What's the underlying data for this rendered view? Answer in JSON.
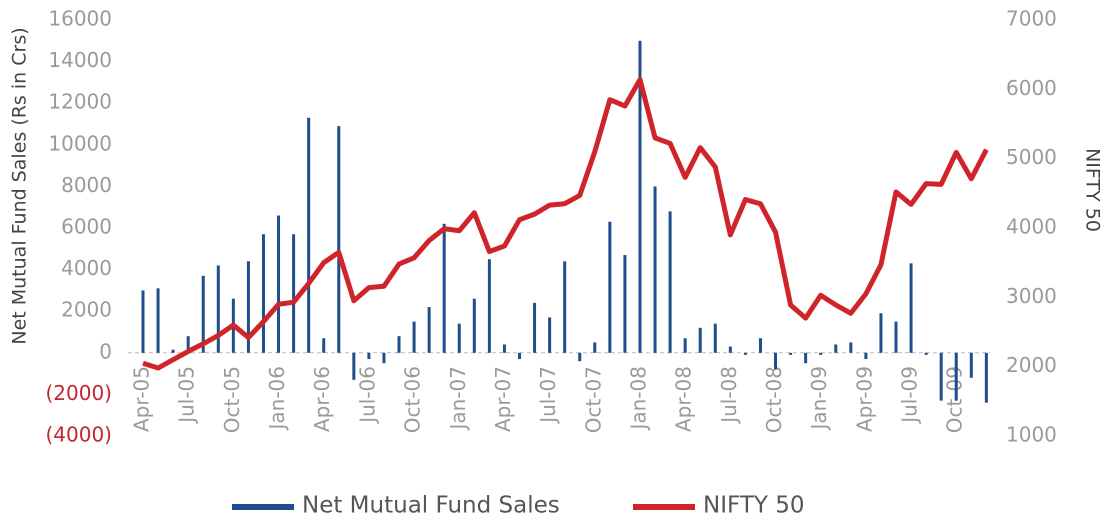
{
  "chart_data": {
    "type": "bar",
    "y_label": "Net Mutual Fund Sales (Rs in Crs)",
    "y2_label": "NIFTY 50",
    "categories": [
      "Apr-05",
      null,
      null,
      "Jul-05",
      null,
      null,
      "Oct-05",
      null,
      null,
      "Jan-06",
      null,
      null,
      "Apr-06",
      null,
      null,
      "Jul-06",
      null,
      null,
      "Oct-06",
      null,
      null,
      "Jan-07",
      null,
      null,
      "Apr-07",
      null,
      null,
      "Jul-07",
      null,
      null,
      "Oct-07",
      null,
      null,
      "Jan-08",
      null,
      null,
      "Apr-08",
      null,
      null,
      "Jul-08",
      null,
      null,
      "Oct-08",
      null,
      null,
      "Jan-09",
      null,
      null,
      "Apr-09",
      null,
      null,
      "Jul-09",
      null,
      null,
      "Oct-09",
      null,
      null
    ],
    "series": [
      {
        "name": "Net Mutual Fund Sales",
        "type": "bar",
        "color": "#1f4e8c",
        "values": [
          3000,
          3100,
          150,
          800,
          3700,
          4200,
          2600,
          4400,
          5700,
          6600,
          5700,
          11300,
          700,
          10900,
          -1300,
          -300,
          -500,
          800,
          1500,
          2200,
          6200,
          1400,
          2600,
          4500,
          400,
          -300,
          2400,
          1700,
          4400,
          -400,
          500,
          6300,
          4700,
          15000,
          8000,
          6800,
          700,
          1200,
          1400,
          300,
          -100,
          700,
          -800,
          -100,
          -500,
          -100,
          400,
          500,
          -300,
          1900,
          1500,
          4300,
          -100,
          -2300,
          -2300,
          -1200,
          -2400
        ]
      },
      {
        "name": "NIFTY 50",
        "type": "line",
        "axis": "y2",
        "color": "#d0242b",
        "values": [
          2050,
          1980,
          2100,
          2220,
          2330,
          2450,
          2600,
          2420,
          2650,
          2900,
          2930,
          3200,
          3500,
          3650,
          2950,
          3140,
          3160,
          3480,
          3570,
          3820,
          3990,
          3960,
          4220,
          3660,
          3740,
          4120,
          4200,
          4330,
          4350,
          4470,
          5100,
          5850,
          5760,
          6140,
          5300,
          5220,
          4730,
          5160,
          4880,
          3900,
          4410,
          4350,
          3940,
          2890,
          2700,
          3030,
          2890,
          2770,
          3050,
          3470,
          4520,
          4340,
          4640,
          4630,
          5090,
          4710,
          5130
        ]
      }
    ],
    "ylim": [
      -4000,
      16000
    ],
    "yticks": [
      {
        "value": -4000,
        "label": "(4000)"
      },
      {
        "value": -2000,
        "label": "(2000)"
      },
      0,
      2000,
      4000,
      6000,
      8000,
      10000,
      12000,
      14000,
      16000
    ],
    "negative_tick_color": "#c0282d",
    "y2lim": [
      1000,
      7000
    ],
    "y2ticks": [
      1000,
      2000,
      3000,
      4000,
      5000,
      6000,
      7000
    ],
    "zero_line": true,
    "legend": "bottom"
  }
}
